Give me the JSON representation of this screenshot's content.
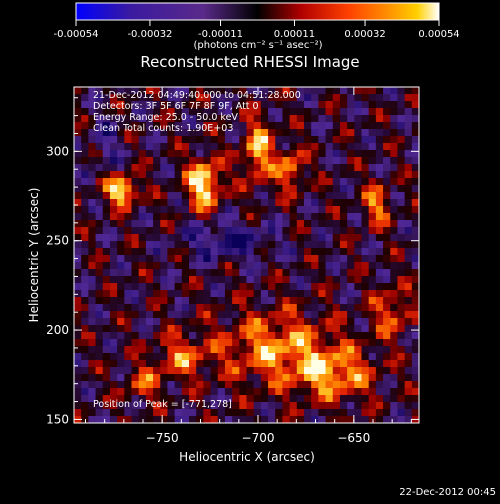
{
  "colorbar": {
    "tick_labels": [
      "-0.00054",
      "-0.00032",
      "-0.00011",
      "0.00011",
      "0.00032",
      "0.00054"
    ],
    "tick_values": [
      -0.00054,
      -0.00032,
      -0.00011,
      0.00011,
      0.00032,
      0.00054
    ],
    "range": [
      -0.00054,
      0.00054
    ],
    "unit_label": "(photons cm⁻² s⁻¹ asec⁻²)",
    "colors": [
      "#0000ff",
      "#3a1aa0",
      "#5a2a8a",
      "#000000",
      "#b00000",
      "#ff4000",
      "#ff9000",
      "#ffd000",
      "#ffffff"
    ]
  },
  "info": {
    "line1": "21-Dec-2012 04:49:40.000 to 04:51:28.000",
    "line2": "Detectors: 3F 5F 6F 7F 8F 9F, Att 0",
    "line3": "Energy Range: 25.0 - 50.0 keV",
    "line4": "Clean     Total counts: 1.90E+03"
  },
  "peak_text": "Position of Peak = [-771,278]",
  "footer_date": "22-Dec-2012 00:45",
  "chart_data": {
    "type": "heatmap",
    "title": "Reconstructed RHESSI Image",
    "xlabel": "Heliocentric X (arcsec)",
    "ylabel": "Heliocentric Y (arcsec)",
    "xlim": [
      -796,
      -616
    ],
    "ylim": [
      148,
      336
    ],
    "xticks": [
      -750,
      -700,
      -650
    ],
    "xtick_labels": [
      "−750",
      "−700",
      "−650"
    ],
    "yticks": [
      150,
      200,
      250,
      300
    ],
    "ytick_labels": [
      "150",
      "200",
      "250",
      "300"
    ],
    "peak": [
      -771,
      278
    ],
    "grid": false
  }
}
